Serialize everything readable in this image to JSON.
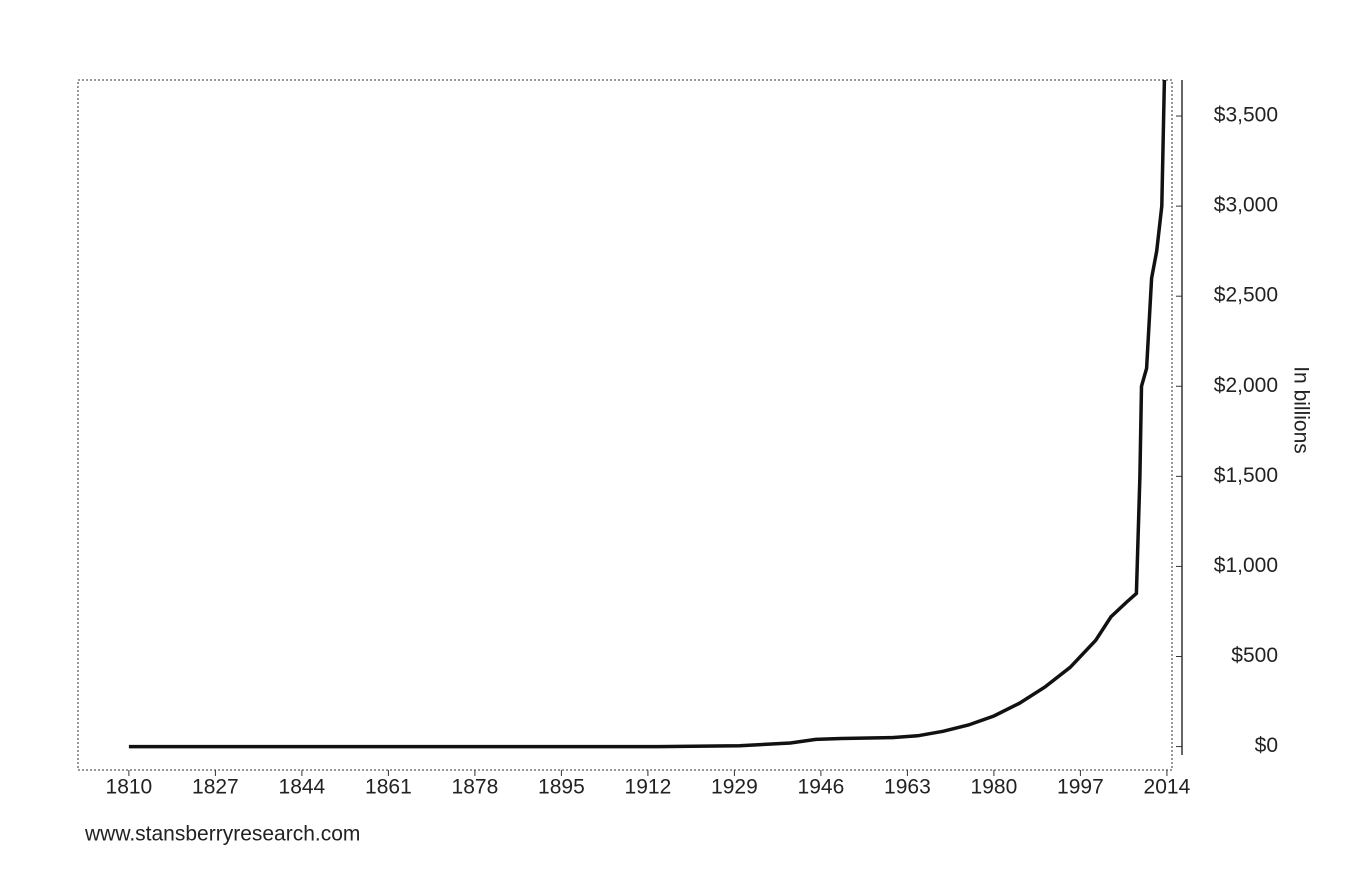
{
  "chart_data": {
    "type": "line",
    "x": [
      1810,
      1850,
      1900,
      1914,
      1930,
      1940,
      1945,
      1950,
      1960,
      1965,
      1970,
      1975,
      1980,
      1985,
      1990,
      1995,
      2000,
      2003,
      2006,
      2008,
      2008.7,
      2009,
      2010,
      2011,
      2012,
      2013,
      2013.5
    ],
    "series": [
      {
        "color": "#111111",
        "values": [
          0,
          0,
          0,
          0,
          5,
          20,
          40,
          45,
          50,
          60,
          85,
          120,
          170,
          240,
          330,
          440,
          590,
          720,
          800,
          850,
          1500,
          2000,
          2100,
          2600,
          2750,
          3000,
          3700
        ]
      }
    ],
    "xlim": [
      1800,
      2015
    ],
    "xticks": [
      1810,
      1827,
      1844,
      1861,
      1878,
      1895,
      1912,
      1929,
      1946,
      1963,
      1980,
      1997,
      2014
    ],
    "ylim": [
      -130,
      3700
    ],
    "yticks": [
      {
        "value": 0,
        "label": "$0"
      },
      {
        "value": 500,
        "label": "$500"
      },
      {
        "value": 1000,
        "label": "$1,000"
      },
      {
        "value": 1500,
        "label": "$1,500"
      },
      {
        "value": 2000,
        "label": "$2,000"
      },
      {
        "value": 2500,
        "label": "$2,500"
      },
      {
        "value": 3000,
        "label": "$3,000"
      },
      {
        "value": 3500,
        "label": "$3,500"
      }
    ],
    "y_axis_label": "In billions",
    "source": "www.stansberryresearch.com"
  }
}
